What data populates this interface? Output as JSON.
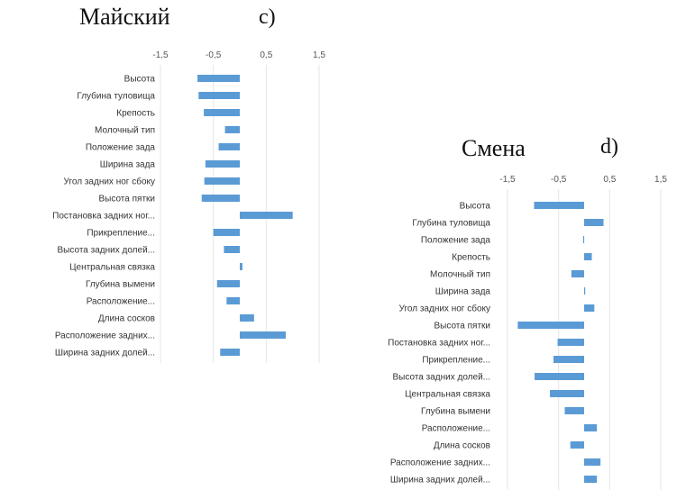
{
  "chart_data": [
    {
      "type": "bar",
      "orientation": "horizontal",
      "title": "Майский",
      "panel_label": "c)",
      "xlim": [
        -1.5,
        1.5
      ],
      "xticks": [
        "-1,5",
        "-0,5",
        "0,5",
        "1,5"
      ],
      "grid": true,
      "bar_color": "#5b9bd5",
      "categories": [
        "Высота",
        "Глубина туловища",
        "Крепость",
        "Молочный тип",
        "Положение зада",
        "Ширина зада",
        "Угол задних ног сбоку",
        "Высота пятки",
        "Постановка задних ног...",
        "Прикрепление...",
        "Высота задних долей...",
        "Центральная связка",
        "Глубина вымени",
        "Расположение...",
        "Длина сосков",
        "Расположение задних...",
        "Ширина задних долей..."
      ],
      "values": [
        -0.8,
        -0.78,
        -0.68,
        -0.28,
        -0.4,
        -0.65,
        -0.67,
        -0.72,
        1.0,
        -0.5,
        -0.3,
        0.05,
        -0.43,
        -0.25,
        0.27,
        0.87,
        -0.37
      ]
    },
    {
      "type": "bar",
      "orientation": "horizontal",
      "title": "Смена",
      "panel_label": "d)",
      "xlim": [
        -1.5,
        1.5
      ],
      "xticks": [
        "-1,5",
        "-0,5",
        "0,5",
        "1,5"
      ],
      "grid": true,
      "bar_color": "#5b9bd5",
      "categories": [
        "Высота",
        "Глубина туловища",
        "Положение зада",
        "Крепость",
        "Молочный тип",
        "Ширина зада",
        "Угол задних ног сбоку",
        "Высота пятки",
        "Постановка задних ног...",
        "Прикрепление...",
        "Высота задних долей...",
        "Центральная связка",
        "Глубина вымени",
        "Расположение...",
        "Длина сосков",
        "Расположение задних...",
        "Ширина задних долей..."
      ],
      "values": [
        -0.98,
        0.38,
        -0.02,
        0.15,
        -0.25,
        0.01,
        0.2,
        -1.3,
        -0.52,
        -0.6,
        -0.97,
        -0.67,
        -0.38,
        0.25,
        -0.27,
        0.32,
        0.25
      ]
    }
  ]
}
